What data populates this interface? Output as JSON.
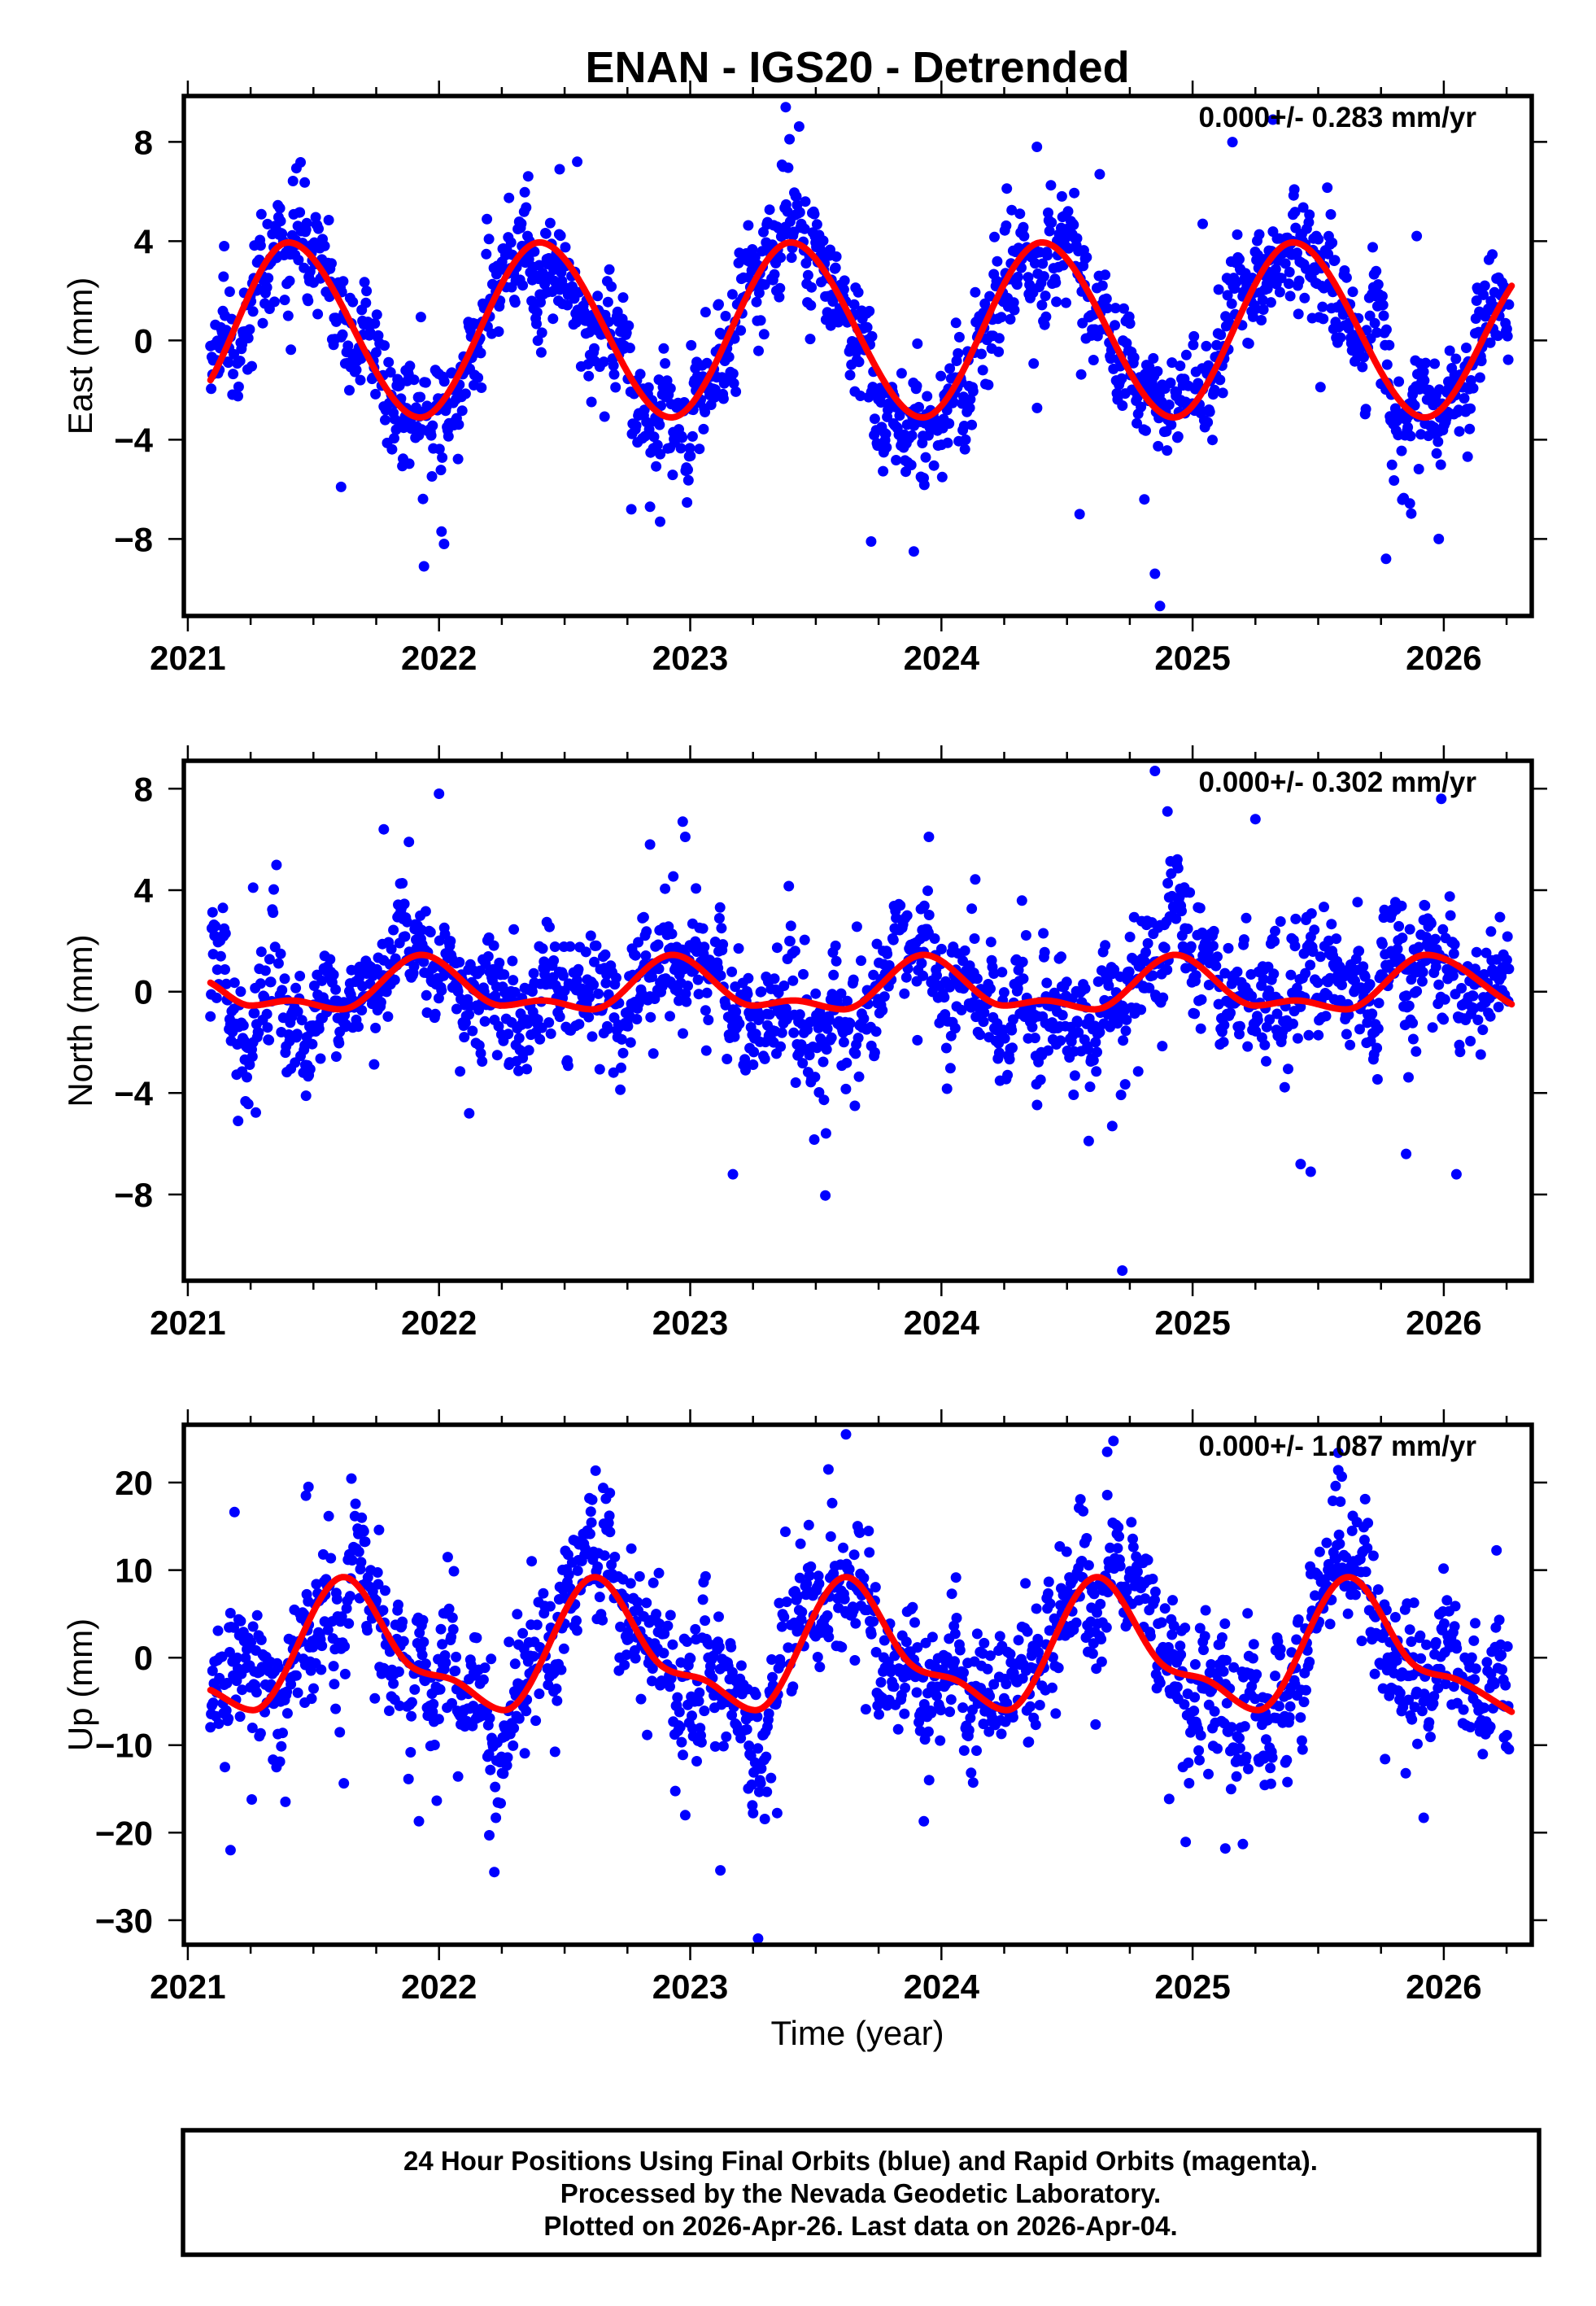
{
  "title": "ENAN - IGS20 - Detrended",
  "xlabel": "Time (year)",
  "footer": {
    "line1": "24 Hour Positions Using Final Orbits (blue) and Rapid Orbits (magenta).",
    "line2": "Processed by the Nevada Geodetic Laboratory.",
    "line3": "Plotted on 2026-Apr-26. Last data on 2026-Apr-04."
  },
  "colors": {
    "final_orbits": "#0000ff",
    "fit": "#ff0000",
    "frame": "#000000",
    "background": "#ffffff"
  },
  "chart_data": [
    {
      "type": "scatter",
      "ylabel": "East (mm)",
      "rate": "0.000+/- 0.283 mm/yr",
      "xlim": [
        2020.984,
        2026.35
      ],
      "ylim": [
        -11.1,
        9.85
      ],
      "grid": false,
      "xticks": [
        2021,
        2022,
        2023,
        2024,
        2025,
        2026
      ],
      "xtick_labels": [
        "2021",
        "2022",
        "2023",
        "2024",
        "2025",
        "2026"
      ],
      "xminor_step": 0.25,
      "yticks": [
        -8,
        -4,
        0,
        4,
        8
      ],
      "ytick_labels": [
        "−8",
        "−4",
        "0",
        "4",
        "8"
      ],
      "points": {
        "color": "#0000ff",
        "t_range": [
          2021.09,
          2026.26
        ],
        "step_days": 1,
        "residual_sigma": 1.25,
        "outliers": [
          [
            2023.38,
            9.4
          ],
          [
            2025.32,
            8.9
          ],
          [
            2024.38,
            7.8
          ],
          [
            2022.55,
            7.2
          ],
          [
            2023.37,
            7.0
          ],
          [
            2022.48,
            6.9
          ],
          [
            2024.63,
            6.7
          ],
          [
            2025.04,
            4.7
          ],
          [
            2021.94,
            -9.1
          ],
          [
            2022.01,
            -7.7
          ],
          [
            2022.02,
            -8.2
          ],
          [
            2022.84,
            -6.7
          ],
          [
            2022.88,
            -7.3
          ],
          [
            2023.72,
            -8.1
          ],
          [
            2023.89,
            -8.5
          ],
          [
            2024.85,
            -9.4
          ],
          [
            2024.87,
            -10.7
          ],
          [
            2025.77,
            -8.8
          ],
          [
            2025.98,
            -8.0
          ],
          [
            2021.61,
            -5.9
          ],
          [
            2024.55,
            -7.0
          ]
        ]
      },
      "fit": {
        "color": "#ff0000",
        "knots": [
          [
            2021.09,
            -1.6
          ],
          [
            2021.4,
            3.95
          ],
          [
            2021.925,
            -3.1
          ],
          [
            2022.4,
            3.95
          ],
          [
            2022.925,
            -3.1
          ],
          [
            2023.4,
            3.95
          ],
          [
            2023.925,
            -3.1
          ],
          [
            2024.4,
            3.95
          ],
          [
            2024.925,
            -3.1
          ],
          [
            2025.4,
            3.95
          ],
          [
            2025.925,
            -3.1
          ],
          [
            2026.27,
            2.2
          ]
        ]
      }
    },
    {
      "type": "scatter",
      "ylabel": "North (mm)",
      "rate": "0.000+/- 0.302 mm/yr",
      "xlim": [
        2020.984,
        2026.35
      ],
      "ylim": [
        -11.4,
        9.1
      ],
      "grid": false,
      "xticks": [
        2021,
        2022,
        2023,
        2024,
        2025,
        2026
      ],
      "xtick_labels": [
        "2021",
        "2022",
        "2023",
        "2024",
        "2025",
        "2026"
      ],
      "xminor_step": 0.25,
      "yticks": [
        -8,
        -4,
        0,
        4,
        8
      ],
      "ytick_labels": [
        "−8",
        "−4",
        "0",
        "4",
        "8"
      ],
      "points": {
        "color": "#0000ff",
        "t_range": [
          2021.09,
          2026.26
        ],
        "step_days": 1,
        "residual_sigma": 1.35,
        "outliers": [
          [
            2021.26,
            4.1
          ],
          [
            2021.78,
            6.4
          ],
          [
            2022.0,
            7.8
          ],
          [
            2021.88,
            5.9
          ],
          [
            2022.84,
            5.8
          ],
          [
            2022.97,
            6.7
          ],
          [
            2022.98,
            6.1
          ],
          [
            2023.17,
            -7.2
          ],
          [
            2023.95,
            6.1
          ],
          [
            2024.72,
            -11.0
          ],
          [
            2024.68,
            -5.3
          ],
          [
            2024.85,
            8.7
          ],
          [
            2024.9,
            7.1
          ],
          [
            2025.25,
            6.8
          ],
          [
            2025.43,
            -6.8
          ],
          [
            2025.47,
            -7.1
          ],
          [
            2025.85,
            -6.4
          ],
          [
            2025.99,
            7.6
          ],
          [
            2026.05,
            -7.2
          ],
          [
            2021.2,
            -5.1
          ],
          [
            2022.12,
            -4.8
          ]
        ]
      },
      "fit": {
        "color": "#ff0000",
        "knots": [
          [
            2021.09,
            0.35
          ],
          [
            2021.25,
            -0.55
          ],
          [
            2021.41,
            -0.35
          ],
          [
            2021.61,
            -0.7
          ],
          [
            2021.93,
            1.45
          ],
          [
            2022.25,
            -0.55
          ],
          [
            2022.41,
            -0.35
          ],
          [
            2022.61,
            -0.7
          ],
          [
            2022.93,
            1.45
          ],
          [
            2023.25,
            -0.55
          ],
          [
            2023.41,
            -0.35
          ],
          [
            2023.61,
            -0.7
          ],
          [
            2023.93,
            1.45
          ],
          [
            2024.25,
            -0.55
          ],
          [
            2024.41,
            -0.35
          ],
          [
            2024.61,
            -0.7
          ],
          [
            2024.93,
            1.45
          ],
          [
            2025.25,
            -0.55
          ],
          [
            2025.41,
            -0.35
          ],
          [
            2025.61,
            -0.7
          ],
          [
            2025.93,
            1.45
          ],
          [
            2026.27,
            -0.5
          ]
        ]
      }
    },
    {
      "type": "scatter",
      "ylabel": "Up (mm)",
      "rate": "0.000+/- 1.087 mm/yr",
      "xlim": [
        2020.984,
        2026.35
      ],
      "ylim": [
        -32.8,
        26.6
      ],
      "grid": false,
      "xticks": [
        2021,
        2022,
        2023,
        2024,
        2025,
        2026
      ],
      "xtick_labels": [
        "2021",
        "2022",
        "2023",
        "2024",
        "2025",
        "2026"
      ],
      "xminor_step": 0.25,
      "yticks": [
        -30,
        -20,
        -10,
        0,
        10,
        20
      ],
      "ytick_labels": [
        "−30",
        "−20",
        "−10",
        "0",
        "10",
        "20"
      ],
      "points": {
        "color": "#0000ff",
        "t_range": [
          2021.09,
          2026.26
        ],
        "step_days": 1,
        "residual_sigma": 4.3,
        "outliers": [
          [
            2021.17,
            -22.0
          ],
          [
            2021.48,
            19.5
          ],
          [
            2021.47,
            18.5
          ],
          [
            2022.22,
            -24.5
          ],
          [
            2022.2,
            -20.3
          ],
          [
            2022.68,
            18.8
          ],
          [
            2023.12,
            -24.3
          ],
          [
            2023.27,
            -32.1
          ],
          [
            2023.62,
            25.5
          ],
          [
            2023.55,
            21.5
          ],
          [
            2024.66,
            23.5
          ],
          [
            2025.58,
            23.4
          ],
          [
            2025.58,
            21.4
          ],
          [
            2025.13,
            -21.8
          ],
          [
            2025.2,
            -21.3
          ],
          [
            2025.92,
            -18.3
          ],
          [
            2021.92,
            -18.7
          ],
          [
            2023.93,
            -18.7
          ],
          [
            2022.98,
            -18.0
          ]
        ]
      },
      "fit": {
        "color": "#ff0000",
        "knots": [
          [
            2021.09,
            -3.7
          ],
          [
            2021.26,
            -6.0
          ],
          [
            2021.62,
            9.2
          ],
          [
            2021.88,
            -0.8
          ],
          [
            2022.06,
            -2.6
          ],
          [
            2022.26,
            -6.0
          ],
          [
            2022.62,
            9.2
          ],
          [
            2022.88,
            -0.8
          ],
          [
            2023.06,
            -2.6
          ],
          [
            2023.26,
            -6.0
          ],
          [
            2023.62,
            9.2
          ],
          [
            2023.88,
            -0.8
          ],
          [
            2024.06,
            -2.6
          ],
          [
            2024.26,
            -6.0
          ],
          [
            2024.62,
            9.2
          ],
          [
            2024.88,
            -0.8
          ],
          [
            2025.06,
            -2.6
          ],
          [
            2025.26,
            -6.0
          ],
          [
            2025.62,
            9.2
          ],
          [
            2025.88,
            -0.8
          ],
          [
            2026.06,
            -2.6
          ],
          [
            2026.27,
            -6.2
          ]
        ]
      }
    }
  ]
}
